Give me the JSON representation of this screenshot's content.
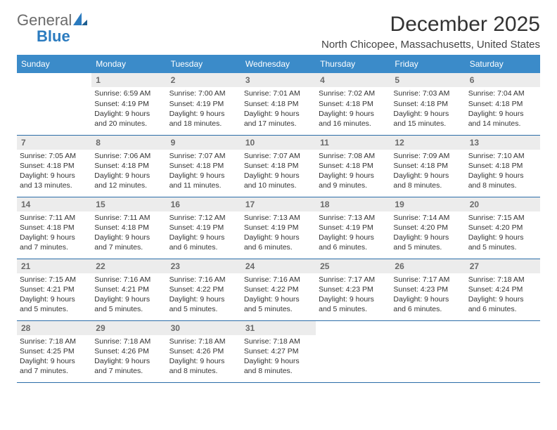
{
  "logo": {
    "text1": "General",
    "text2": "Blue"
  },
  "title": "December 2025",
  "location": "North Chicopee, Massachusetts, United States",
  "accent_color": "#3b8bc9",
  "rule_color": "#2b6da8",
  "daynum_bg": "#ececec",
  "weekdays": [
    "Sunday",
    "Monday",
    "Tuesday",
    "Wednesday",
    "Thursday",
    "Friday",
    "Saturday"
  ],
  "grid": [
    [
      null,
      {
        "num": "1",
        "sr": "Sunrise: 6:59 AM",
        "ss": "Sunset: 4:19 PM",
        "d1": "Daylight: 9 hours",
        "d2": "and 20 minutes."
      },
      {
        "num": "2",
        "sr": "Sunrise: 7:00 AM",
        "ss": "Sunset: 4:19 PM",
        "d1": "Daylight: 9 hours",
        "d2": "and 18 minutes."
      },
      {
        "num": "3",
        "sr": "Sunrise: 7:01 AM",
        "ss": "Sunset: 4:18 PM",
        "d1": "Daylight: 9 hours",
        "d2": "and 17 minutes."
      },
      {
        "num": "4",
        "sr": "Sunrise: 7:02 AM",
        "ss": "Sunset: 4:18 PM",
        "d1": "Daylight: 9 hours",
        "d2": "and 16 minutes."
      },
      {
        "num": "5",
        "sr": "Sunrise: 7:03 AM",
        "ss": "Sunset: 4:18 PM",
        "d1": "Daylight: 9 hours",
        "d2": "and 15 minutes."
      },
      {
        "num": "6",
        "sr": "Sunrise: 7:04 AM",
        "ss": "Sunset: 4:18 PM",
        "d1": "Daylight: 9 hours",
        "d2": "and 14 minutes."
      }
    ],
    [
      {
        "num": "7",
        "sr": "Sunrise: 7:05 AM",
        "ss": "Sunset: 4:18 PM",
        "d1": "Daylight: 9 hours",
        "d2": "and 13 minutes."
      },
      {
        "num": "8",
        "sr": "Sunrise: 7:06 AM",
        "ss": "Sunset: 4:18 PM",
        "d1": "Daylight: 9 hours",
        "d2": "and 12 minutes."
      },
      {
        "num": "9",
        "sr": "Sunrise: 7:07 AM",
        "ss": "Sunset: 4:18 PM",
        "d1": "Daylight: 9 hours",
        "d2": "and 11 minutes."
      },
      {
        "num": "10",
        "sr": "Sunrise: 7:07 AM",
        "ss": "Sunset: 4:18 PM",
        "d1": "Daylight: 9 hours",
        "d2": "and 10 minutes."
      },
      {
        "num": "11",
        "sr": "Sunrise: 7:08 AM",
        "ss": "Sunset: 4:18 PM",
        "d1": "Daylight: 9 hours",
        "d2": "and 9 minutes."
      },
      {
        "num": "12",
        "sr": "Sunrise: 7:09 AM",
        "ss": "Sunset: 4:18 PM",
        "d1": "Daylight: 9 hours",
        "d2": "and 8 minutes."
      },
      {
        "num": "13",
        "sr": "Sunrise: 7:10 AM",
        "ss": "Sunset: 4:18 PM",
        "d1": "Daylight: 9 hours",
        "d2": "and 8 minutes."
      }
    ],
    [
      {
        "num": "14",
        "sr": "Sunrise: 7:11 AM",
        "ss": "Sunset: 4:18 PM",
        "d1": "Daylight: 9 hours",
        "d2": "and 7 minutes."
      },
      {
        "num": "15",
        "sr": "Sunrise: 7:11 AM",
        "ss": "Sunset: 4:18 PM",
        "d1": "Daylight: 9 hours",
        "d2": "and 7 minutes."
      },
      {
        "num": "16",
        "sr": "Sunrise: 7:12 AM",
        "ss": "Sunset: 4:19 PM",
        "d1": "Daylight: 9 hours",
        "d2": "and 6 minutes."
      },
      {
        "num": "17",
        "sr": "Sunrise: 7:13 AM",
        "ss": "Sunset: 4:19 PM",
        "d1": "Daylight: 9 hours",
        "d2": "and 6 minutes."
      },
      {
        "num": "18",
        "sr": "Sunrise: 7:13 AM",
        "ss": "Sunset: 4:19 PM",
        "d1": "Daylight: 9 hours",
        "d2": "and 6 minutes."
      },
      {
        "num": "19",
        "sr": "Sunrise: 7:14 AM",
        "ss": "Sunset: 4:20 PM",
        "d1": "Daylight: 9 hours",
        "d2": "and 5 minutes."
      },
      {
        "num": "20",
        "sr": "Sunrise: 7:15 AM",
        "ss": "Sunset: 4:20 PM",
        "d1": "Daylight: 9 hours",
        "d2": "and 5 minutes."
      }
    ],
    [
      {
        "num": "21",
        "sr": "Sunrise: 7:15 AM",
        "ss": "Sunset: 4:21 PM",
        "d1": "Daylight: 9 hours",
        "d2": "and 5 minutes."
      },
      {
        "num": "22",
        "sr": "Sunrise: 7:16 AM",
        "ss": "Sunset: 4:21 PM",
        "d1": "Daylight: 9 hours",
        "d2": "and 5 minutes."
      },
      {
        "num": "23",
        "sr": "Sunrise: 7:16 AM",
        "ss": "Sunset: 4:22 PM",
        "d1": "Daylight: 9 hours",
        "d2": "and 5 minutes."
      },
      {
        "num": "24",
        "sr": "Sunrise: 7:16 AM",
        "ss": "Sunset: 4:22 PM",
        "d1": "Daylight: 9 hours",
        "d2": "and 5 minutes."
      },
      {
        "num": "25",
        "sr": "Sunrise: 7:17 AM",
        "ss": "Sunset: 4:23 PM",
        "d1": "Daylight: 9 hours",
        "d2": "and 5 minutes."
      },
      {
        "num": "26",
        "sr": "Sunrise: 7:17 AM",
        "ss": "Sunset: 4:23 PM",
        "d1": "Daylight: 9 hours",
        "d2": "and 6 minutes."
      },
      {
        "num": "27",
        "sr": "Sunrise: 7:18 AM",
        "ss": "Sunset: 4:24 PM",
        "d1": "Daylight: 9 hours",
        "d2": "and 6 minutes."
      }
    ],
    [
      {
        "num": "28",
        "sr": "Sunrise: 7:18 AM",
        "ss": "Sunset: 4:25 PM",
        "d1": "Daylight: 9 hours",
        "d2": "and 7 minutes."
      },
      {
        "num": "29",
        "sr": "Sunrise: 7:18 AM",
        "ss": "Sunset: 4:26 PM",
        "d1": "Daylight: 9 hours",
        "d2": "and 7 minutes."
      },
      {
        "num": "30",
        "sr": "Sunrise: 7:18 AM",
        "ss": "Sunset: 4:26 PM",
        "d1": "Daylight: 9 hours",
        "d2": "and 8 minutes."
      },
      {
        "num": "31",
        "sr": "Sunrise: 7:18 AM",
        "ss": "Sunset: 4:27 PM",
        "d1": "Daylight: 9 hours",
        "d2": "and 8 minutes."
      },
      null,
      null,
      null
    ]
  ]
}
